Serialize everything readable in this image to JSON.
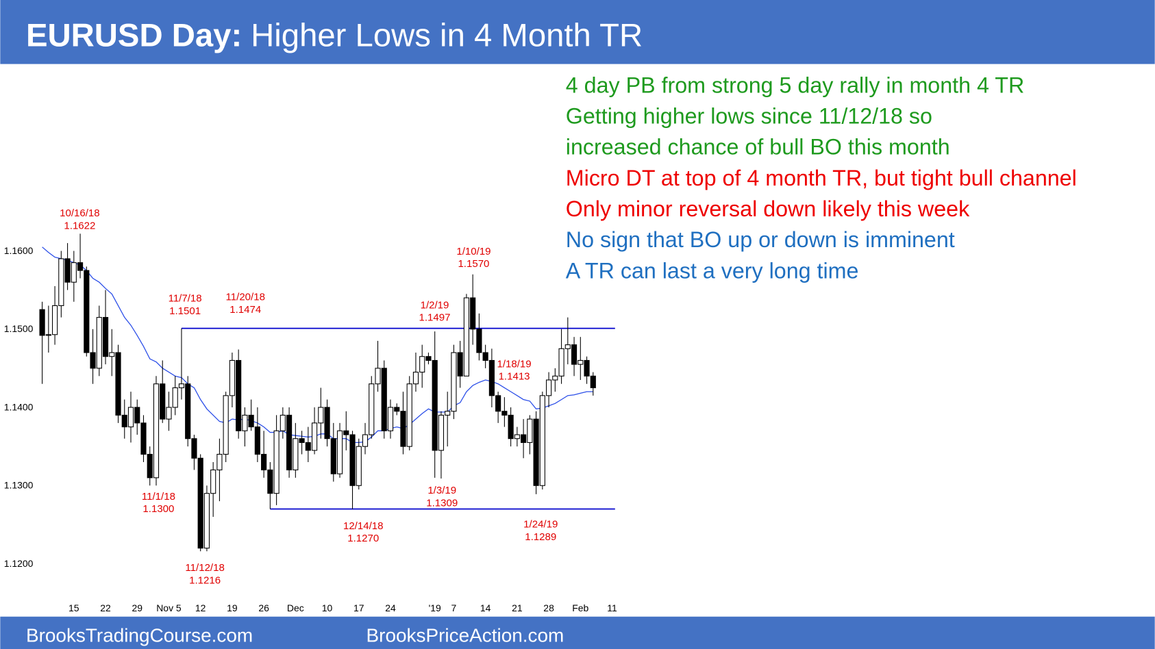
{
  "chart_data": {
    "type": "candlestick",
    "title_lead": "EURUSD Day:",
    "title": "Higher Lows in 4 Month TR",
    "categories": [
      null,
      null,
      null,
      null,
      null,
      "15",
      null,
      null,
      null,
      null,
      "22",
      null,
      null,
      null,
      null,
      "29",
      null,
      null,
      null,
      null,
      "Nov 5",
      null,
      null,
      null,
      null,
      "12",
      null,
      null,
      null,
      null,
      "19",
      null,
      null,
      null,
      null,
      "26",
      null,
      null,
      null,
      null,
      "Dec",
      null,
      null,
      null,
      null,
      "10",
      null,
      null,
      null,
      null,
      "17",
      null,
      null,
      null,
      null,
      "24",
      null,
      null,
      null,
      null,
      null,
      null,
      "'19",
      null,
      null,
      "7",
      null,
      null,
      null,
      null,
      "14",
      null,
      null,
      null,
      null,
      "21",
      null,
      null,
      null,
      null,
      "28",
      null,
      null,
      null,
      null,
      "Feb",
      null,
      null,
      null,
      null,
      "11"
    ],
    "open": [
      1.1525,
      1.1492,
      1.1493,
      1.153,
      1.159,
      1.156,
      1.1585,
      1.1575,
      1.147,
      1.145,
      1.1515,
      1.1465,
      1.147,
      1.139,
      1.1375,
      1.14,
      1.138,
      1.134,
      1.131,
      1.143,
      1.1385,
      1.14,
      1.1425,
      1.143,
      1.136,
      1.1335,
      1.122,
      1.129,
      1.132,
      1.134,
      1.1415,
      1.146,
      1.137,
      1.139,
      1.1375,
      1.134,
      1.132,
      1.129,
      1.137,
      1.139,
      1.132,
      1.136,
      1.1355,
      1.1345,
      1.138,
      1.14,
      1.136,
      1.1315,
      1.137,
      1.1365,
      1.13,
      1.135,
      1.1365,
      1.143,
      1.145,
      1.137,
      1.14,
      1.1395,
      1.135,
      1.143,
      1.1445,
      1.1465,
      1.146,
      1.1345,
      1.139,
      1.1395,
      1.147,
      1.144,
      1.154,
      1.15,
      1.147,
      1.146,
      1.1415,
      1.1395,
      1.139,
      1.136,
      1.1365,
      1.1355,
      1.1385,
      1.13,
      1.1415,
      1.1435,
      1.144,
      1.1475,
      1.148,
      1.1455,
      1.146,
      1.144,
      null,
      null,
      null
    ],
    "high": [
      1.1535,
      1.153,
      1.1555,
      1.16,
      1.161,
      1.16,
      1.1622,
      1.158,
      1.15,
      1.153,
      1.155,
      1.15,
      1.148,
      1.141,
      1.142,
      1.141,
      1.139,
      1.135,
      1.144,
      1.146,
      1.142,
      1.144,
      1.1501,
      1.144,
      1.1365,
      1.134,
      1.13,
      1.133,
      1.136,
      1.142,
      1.147,
      1.1474,
      1.14,
      1.141,
      1.14,
      1.137,
      1.133,
      1.139,
      1.14,
      1.14,
      1.138,
      1.137,
      1.1375,
      1.14,
      1.1425,
      1.141,
      1.138,
      1.138,
      1.1395,
      1.137,
      1.136,
      1.138,
      1.144,
      1.1485,
      1.146,
      1.141,
      1.1405,
      1.142,
      1.144,
      1.147,
      1.148,
      1.147,
      1.1497,
      1.1395,
      1.142,
      1.148,
      1.1485,
      1.1545,
      1.157,
      1.152,
      1.148,
      1.1475,
      1.142,
      1.1413,
      1.14,
      1.1375,
      1.1385,
      1.139,
      1.1395,
      1.142,
      1.1445,
      1.145,
      1.15,
      1.1515,
      1.149,
      1.149,
      1.1465,
      1.1445,
      null,
      null,
      null
    ],
    "low": [
      1.143,
      1.147,
      1.148,
      1.1515,
      1.155,
      1.1535,
      1.1565,
      1.1465,
      1.143,
      1.144,
      1.1455,
      1.144,
      1.138,
      1.136,
      1.1355,
      1.1365,
      1.133,
      1.13,
      1.13,
      1.138,
      1.137,
      1.139,
      1.141,
      1.135,
      1.132,
      1.1216,
      1.1216,
      1.126,
      1.128,
      1.133,
      1.14,
      1.136,
      1.135,
      1.137,
      1.133,
      1.131,
      1.127,
      1.1275,
      1.136,
      1.131,
      1.131,
      1.134,
      1.133,
      1.134,
      1.136,
      1.135,
      1.1305,
      1.131,
      1.1345,
      1.127,
      1.1295,
      1.134,
      1.136,
      1.142,
      1.136,
      1.136,
      1.139,
      1.134,
      1.1345,
      1.142,
      1.1425,
      1.1455,
      1.131,
      1.1309,
      1.135,
      1.1385,
      1.1425,
      1.144,
      1.148,
      1.146,
      1.145,
      1.14,
      1.138,
      1.1375,
      1.135,
      1.135,
      1.1335,
      1.134,
      1.1289,
      1.1295,
      1.14,
      1.142,
      1.143,
      1.1455,
      1.144,
      1.1435,
      1.143,
      1.1415,
      null,
      null,
      null
    ],
    "close": [
      1.1492,
      1.1493,
      1.153,
      1.159,
      1.156,
      1.1585,
      1.1575,
      1.147,
      1.145,
      1.1515,
      1.1465,
      1.147,
      1.139,
      1.1375,
      1.14,
      1.138,
      1.134,
      1.131,
      1.143,
      1.1385,
      1.14,
      1.1425,
      1.143,
      1.136,
      1.1335,
      1.122,
      1.129,
      1.132,
      1.134,
      1.1415,
      1.146,
      1.137,
      1.139,
      1.1375,
      1.134,
      1.132,
      1.129,
      1.137,
      1.139,
      1.132,
      1.136,
      1.1355,
      1.1345,
      1.138,
      1.14,
      1.136,
      1.1315,
      1.137,
      1.1365,
      1.13,
      1.135,
      1.1365,
      1.143,
      1.145,
      1.137,
      1.14,
      1.1395,
      1.135,
      1.143,
      1.1445,
      1.1465,
      1.146,
      1.1345,
      1.139,
      1.1395,
      1.147,
      1.144,
      1.154,
      1.15,
      1.147,
      1.146,
      1.1415,
      1.1395,
      1.139,
      1.136,
      1.1365,
      1.1355,
      1.1385,
      1.13,
      1.1415,
      1.1435,
      1.144,
      1.1475,
      1.148,
      1.1455,
      1.146,
      1.144,
      1.1425,
      null,
      null,
      null
    ],
    "up_color": "#ffffff",
    "down_color": "#000000",
    "ma": {
      "color": "#2b4ee8",
      "values": [
        1.1605,
        1.1598,
        1.1592,
        1.159,
        1.1588,
        1.1585,
        1.1582,
        1.1575,
        1.1565,
        1.156,
        1.1552,
        1.1545,
        1.153,
        1.1515,
        1.1505,
        1.1492,
        1.1478,
        1.1462,
        1.1458,
        1.145,
        1.1445,
        1.144,
        1.1438,
        1.143,
        1.1425,
        1.141,
        1.1398,
        1.139,
        1.1382,
        1.138,
        1.1385,
        1.1384,
        1.1385,
        1.1383,
        1.138,
        1.1375,
        1.1368,
        1.1368,
        1.137,
        1.1365,
        1.1364,
        1.1363,
        1.1362,
        1.1363,
        1.1366,
        1.1366,
        1.136,
        1.136,
        1.136,
        1.1355,
        1.1355,
        1.1356,
        1.1362,
        1.137,
        1.137,
        1.1373,
        1.1375,
        1.1373,
        1.1378,
        1.1385,
        1.1392,
        1.1398,
        1.1394,
        1.1394,
        1.1394,
        1.1402,
        1.1406,
        1.142,
        1.1428,
        1.1432,
        1.1435,
        1.1433,
        1.143,
        1.1425,
        1.142,
        1.1415,
        1.141,
        1.1408,
        1.1398,
        1.1399,
        1.1402,
        1.1405,
        1.141,
        1.1415,
        1.1416,
        1.1418,
        1.142,
        1.142,
        null,
        null,
        null
      ]
    },
    "hlines": [
      {
        "value": 1.1501,
        "color": "#0000cc"
      },
      {
        "value": 1.127,
        "color": "#0000cc"
      }
    ],
    "ylim": [
      1.116,
      1.183
    ],
    "yticks": [
      {
        "value": 1.12,
        "label": "1.1200"
      },
      {
        "value": 1.13,
        "label": "1.1300"
      },
      {
        "value": 1.14,
        "label": "1.1400"
      },
      {
        "value": 1.15,
        "label": "1.1500"
      },
      {
        "value": 1.16,
        "label": "1.1600"
      }
    ],
    "annotations": [
      {
        "text": "10/16/18",
        "price": {
          "value": 1.1622,
          "label": "1.1622"
        }
      },
      {
        "text": "11/7/18",
        "price": {
          "value": 1.1501,
          "label": "1.1501"
        }
      },
      {
        "text": "11/20/18",
        "price": {
          "value": 1.1474,
          "label": "1.1474"
        }
      },
      {
        "text": "1/2/19",
        "price": {
          "value": 1.1497,
          "label": "1.1497"
        }
      },
      {
        "text": "1/10/19",
        "price": {
          "value": 1.157,
          "label": "1.1570"
        }
      },
      {
        "text": "1/18/19",
        "price": {
          "value": 1.1413,
          "label": "1.1413"
        }
      },
      {
        "text": "11/1/18",
        "price": {
          "value": 1.13,
          "label": "1.1300"
        }
      },
      {
        "text": "11/12/18",
        "price": {
          "value": 1.1216,
          "label": "1.1216"
        }
      },
      {
        "text": "1/3/19",
        "price": {
          "value": 1.1309,
          "label": "1.1309"
        }
      },
      {
        "text": "12/14/18",
        "price": {
          "value": 1.127,
          "label": "1.1270"
        }
      },
      {
        "text": "1/24/19",
        "price": {
          "value": 1.1289,
          "label": "1.1289"
        }
      }
    ],
    "annotation_color": "#e00000"
  },
  "notes": [
    {
      "text": "4 day PB from strong 5 day rally in month 4 TR",
      "color": "#1e9a1e"
    },
    {
      "text": "Getting higher lows since 11/12/18 so",
      "color": "#1e9a1e"
    },
    {
      "text": "increased chance of bull BO this month",
      "color": "#1e9a1e"
    },
    {
      "text": "Micro DT at top of 4 month TR, but tight bull channel",
      "color": "#ee0000"
    },
    {
      "text": "Only minor reversal down likely this week",
      "color": "#ee0000"
    },
    {
      "text": "No sign that BO up or down is imminent",
      "color": "#1f6fc0"
    },
    {
      "text": "A TR can last a very long time",
      "color": "#1f6fc0"
    }
  ],
  "footer": {
    "left": "BrooksTradingCourse.com",
    "right": "BrooksPriceAction.com"
  }
}
